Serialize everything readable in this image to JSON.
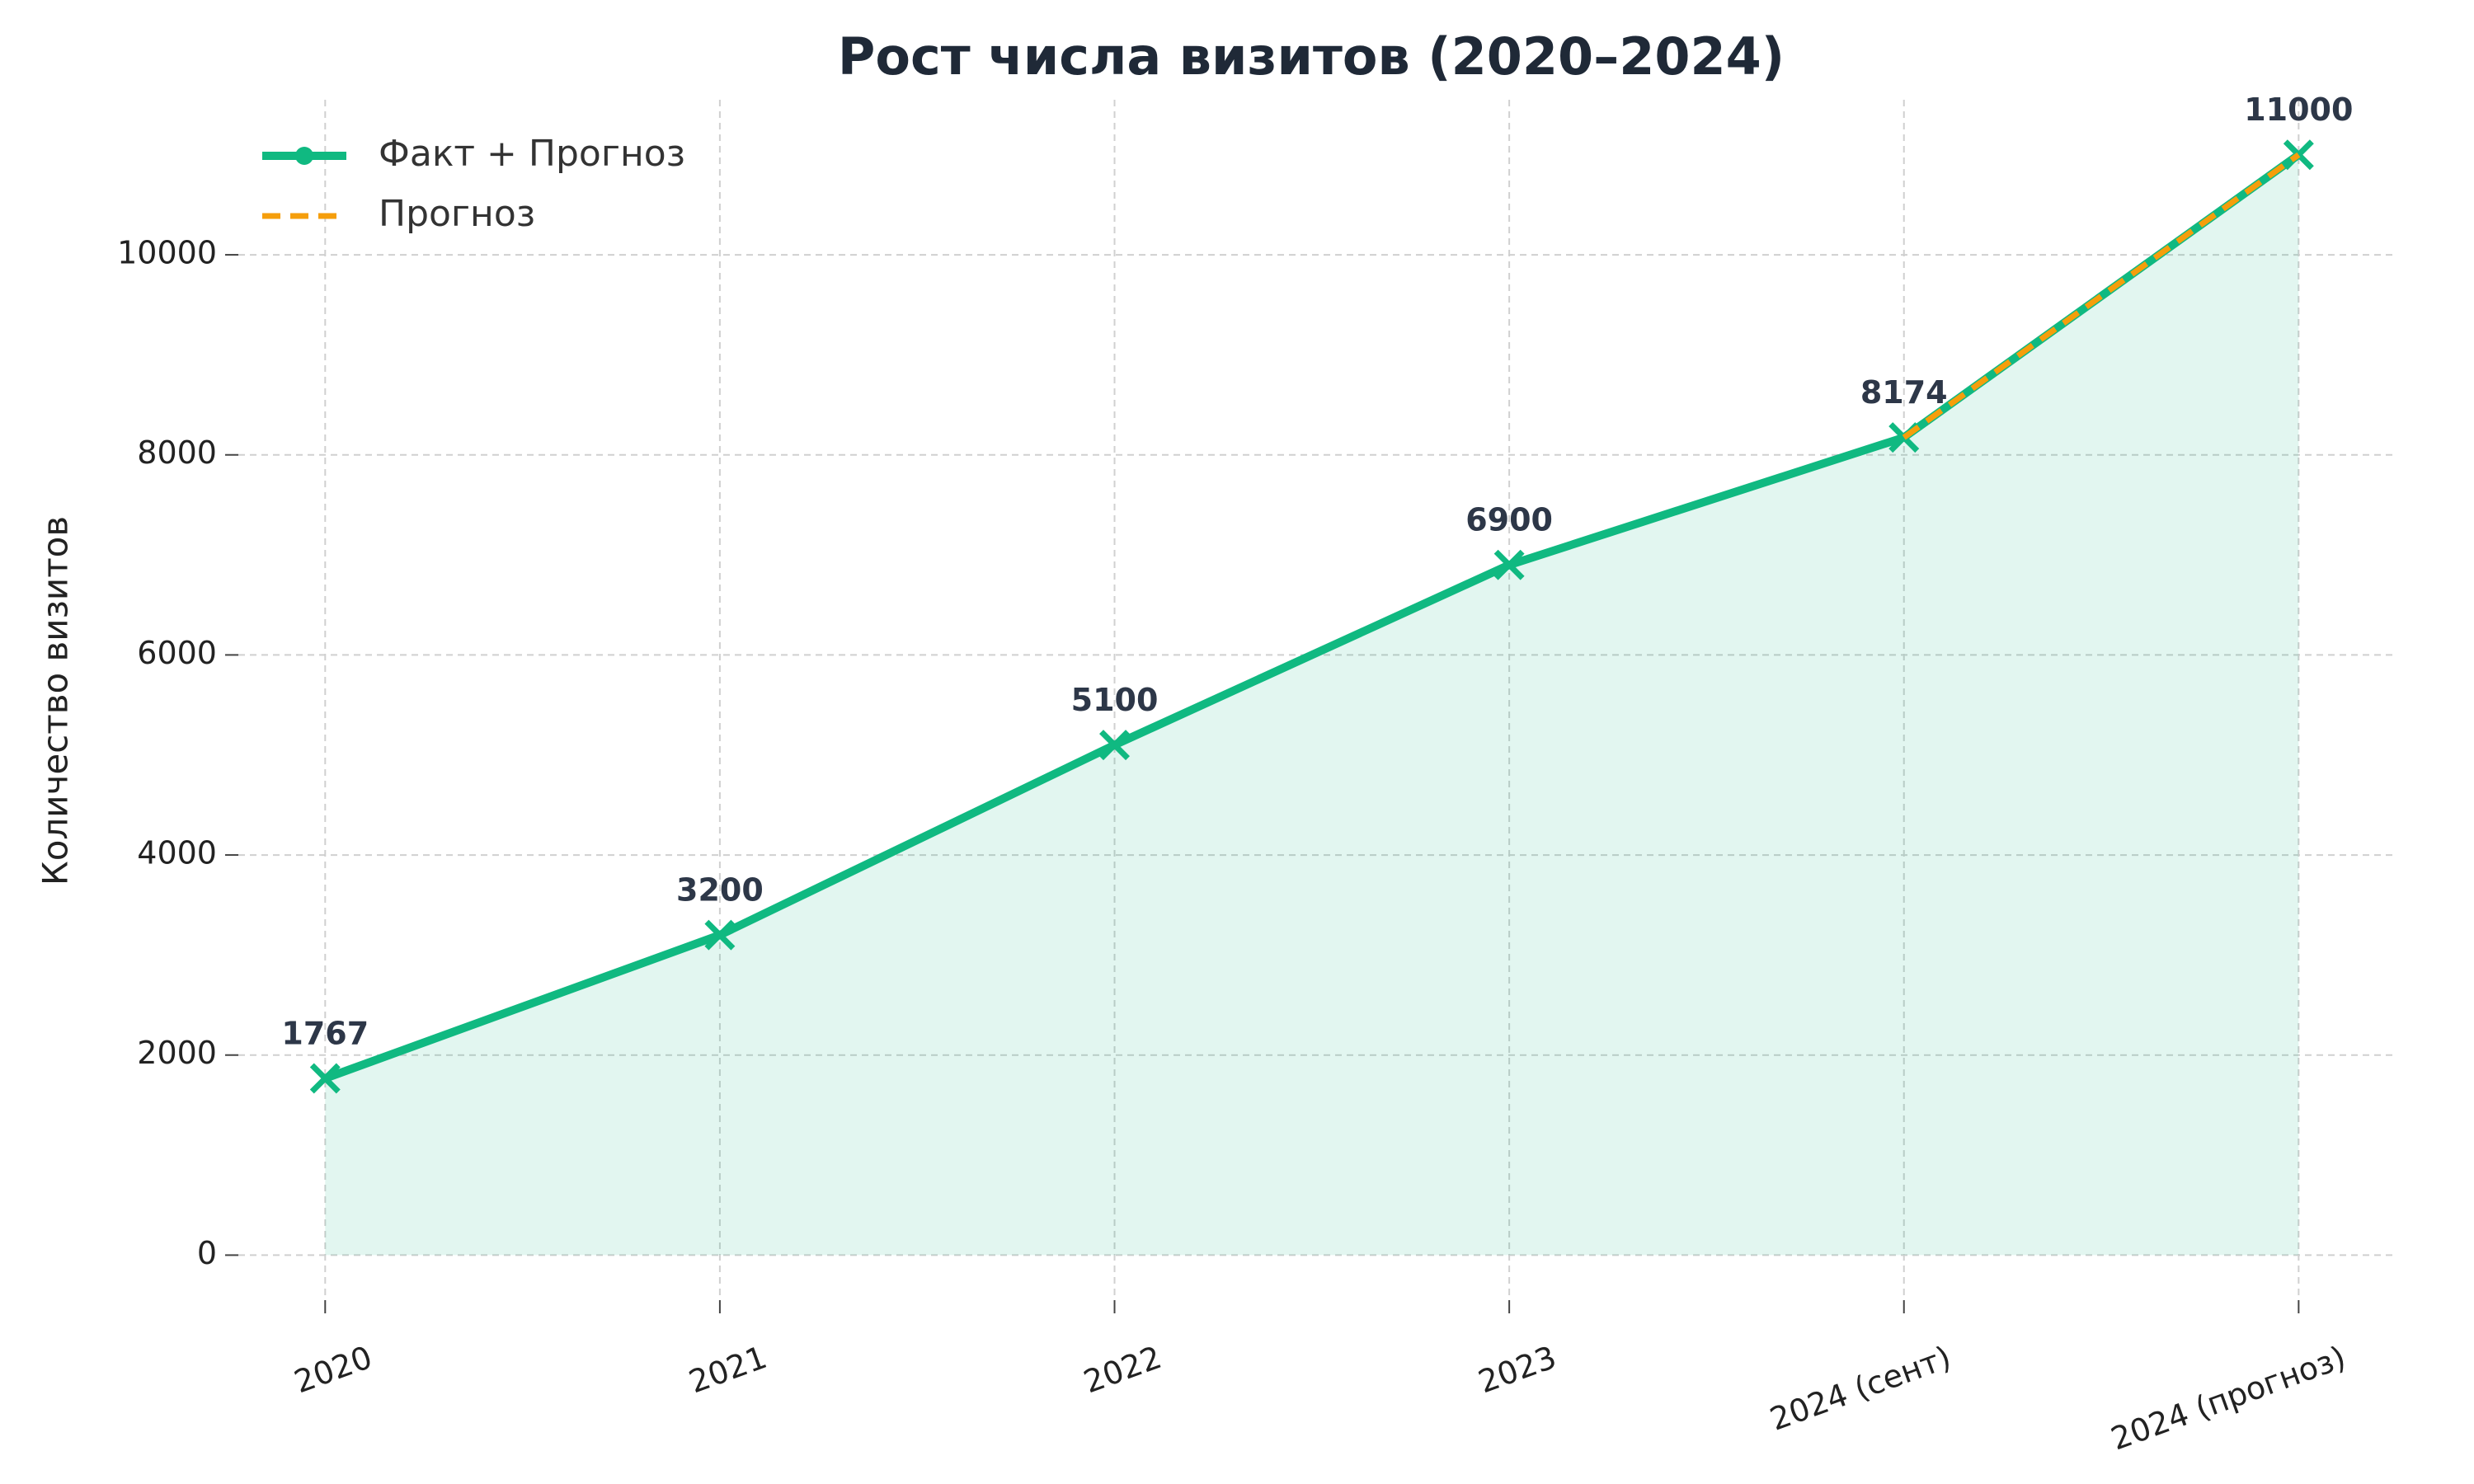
{
  "chart_data": {
    "type": "line",
    "title": "Рост числа визитов (2020–2024)",
    "y_label": "Количество визитов",
    "categories": [
      "2020",
      "2021",
      "2022",
      "2023",
      "2024 (сент)",
      "2024 (прогноз)"
    ],
    "series": [
      {
        "name": "Факт + Прогноз",
        "color": "#10b981",
        "values": [
          1767,
          3200,
          5100,
          6900,
          8174,
          11000
        ],
        "fill": true,
        "data_labels": true
      },
      {
        "name": "Прогноз",
        "color": "#f59e0b",
        "dashed": true,
        "values": [
          null,
          null,
          null,
          null,
          8174,
          11000
        ]
      }
    ],
    "ylim": [
      -450,
      11550
    ],
    "yticks": [
      0,
      2000,
      4000,
      6000,
      8000,
      10000
    ],
    "grid": true,
    "legend": "upper left"
  }
}
